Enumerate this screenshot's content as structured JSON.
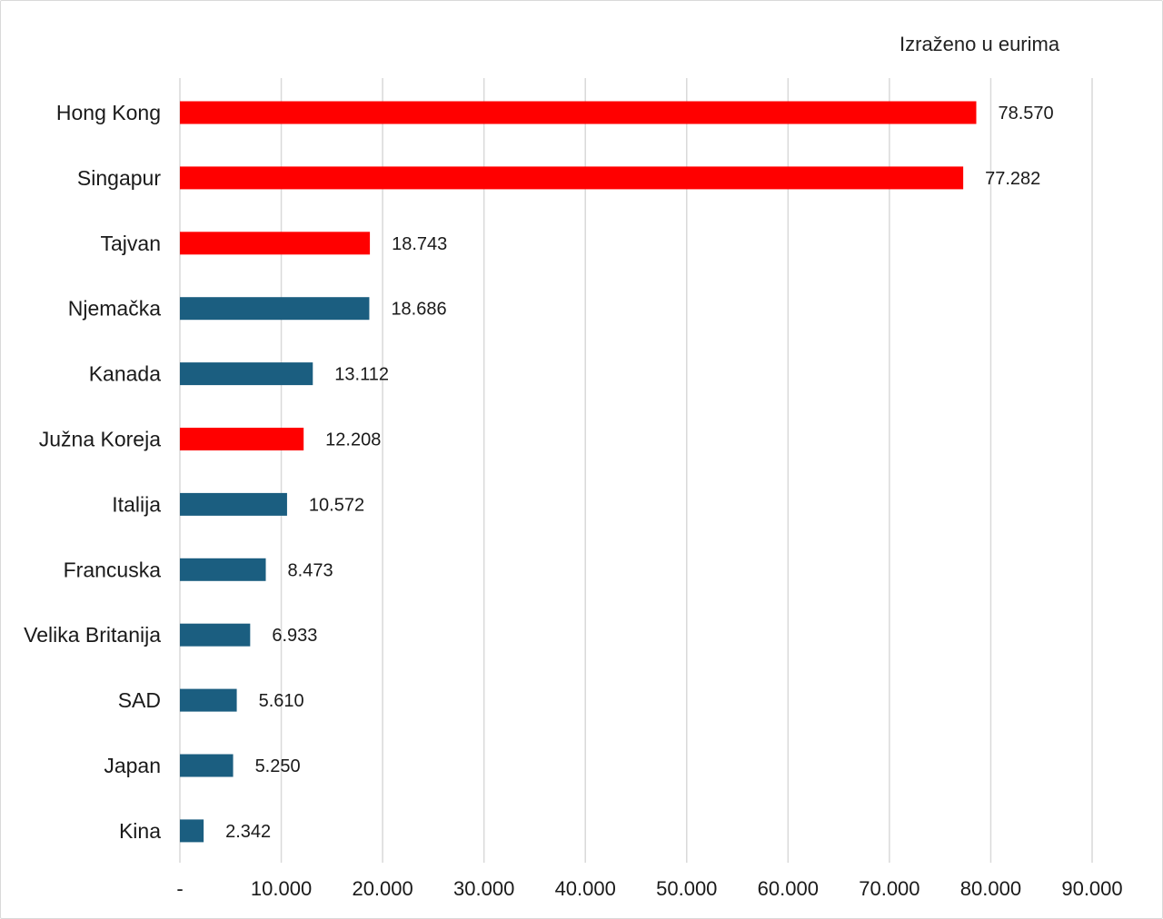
{
  "chart_data": {
    "type": "bar",
    "orientation": "horizontal",
    "unit_note": "Izraženo u eurima",
    "categories": [
      "Hong Kong",
      "Singapur",
      "Tajvan",
      "Njemačka",
      "Kanada",
      "Južna Koreja",
      "Italija",
      "Francuska",
      "Velika Britanija",
      "SAD",
      "Japan",
      "Kina"
    ],
    "values": [
      78570,
      77282,
      18743,
      18686,
      13112,
      12208,
      10572,
      8473,
      6933,
      5610,
      5250,
      2342
    ],
    "value_labels": [
      "78.570",
      "77.282",
      "18.743",
      "18.686",
      "13.112",
      "12.208",
      "10.572",
      "8.473",
      "6.933",
      "5.610",
      "5.250",
      "2.342"
    ],
    "highlighted": [
      true,
      true,
      true,
      false,
      false,
      true,
      false,
      false,
      false,
      false,
      false,
      false
    ],
    "xlim": [
      0,
      90000
    ],
    "x_ticks": [
      0,
      10000,
      20000,
      30000,
      40000,
      50000,
      60000,
      70000,
      80000,
      90000
    ],
    "x_tick_labels": [
      "-",
      "10.000",
      "20.000",
      "30.000",
      "40.000",
      "50.000",
      "60.000",
      "70.000",
      "80.000",
      "90.000"
    ],
    "grid": true,
    "legend": "none"
  },
  "colors": {
    "highlight": "#ff0000",
    "default": "#1b5e80",
    "grid": "#d9d9d9"
  }
}
